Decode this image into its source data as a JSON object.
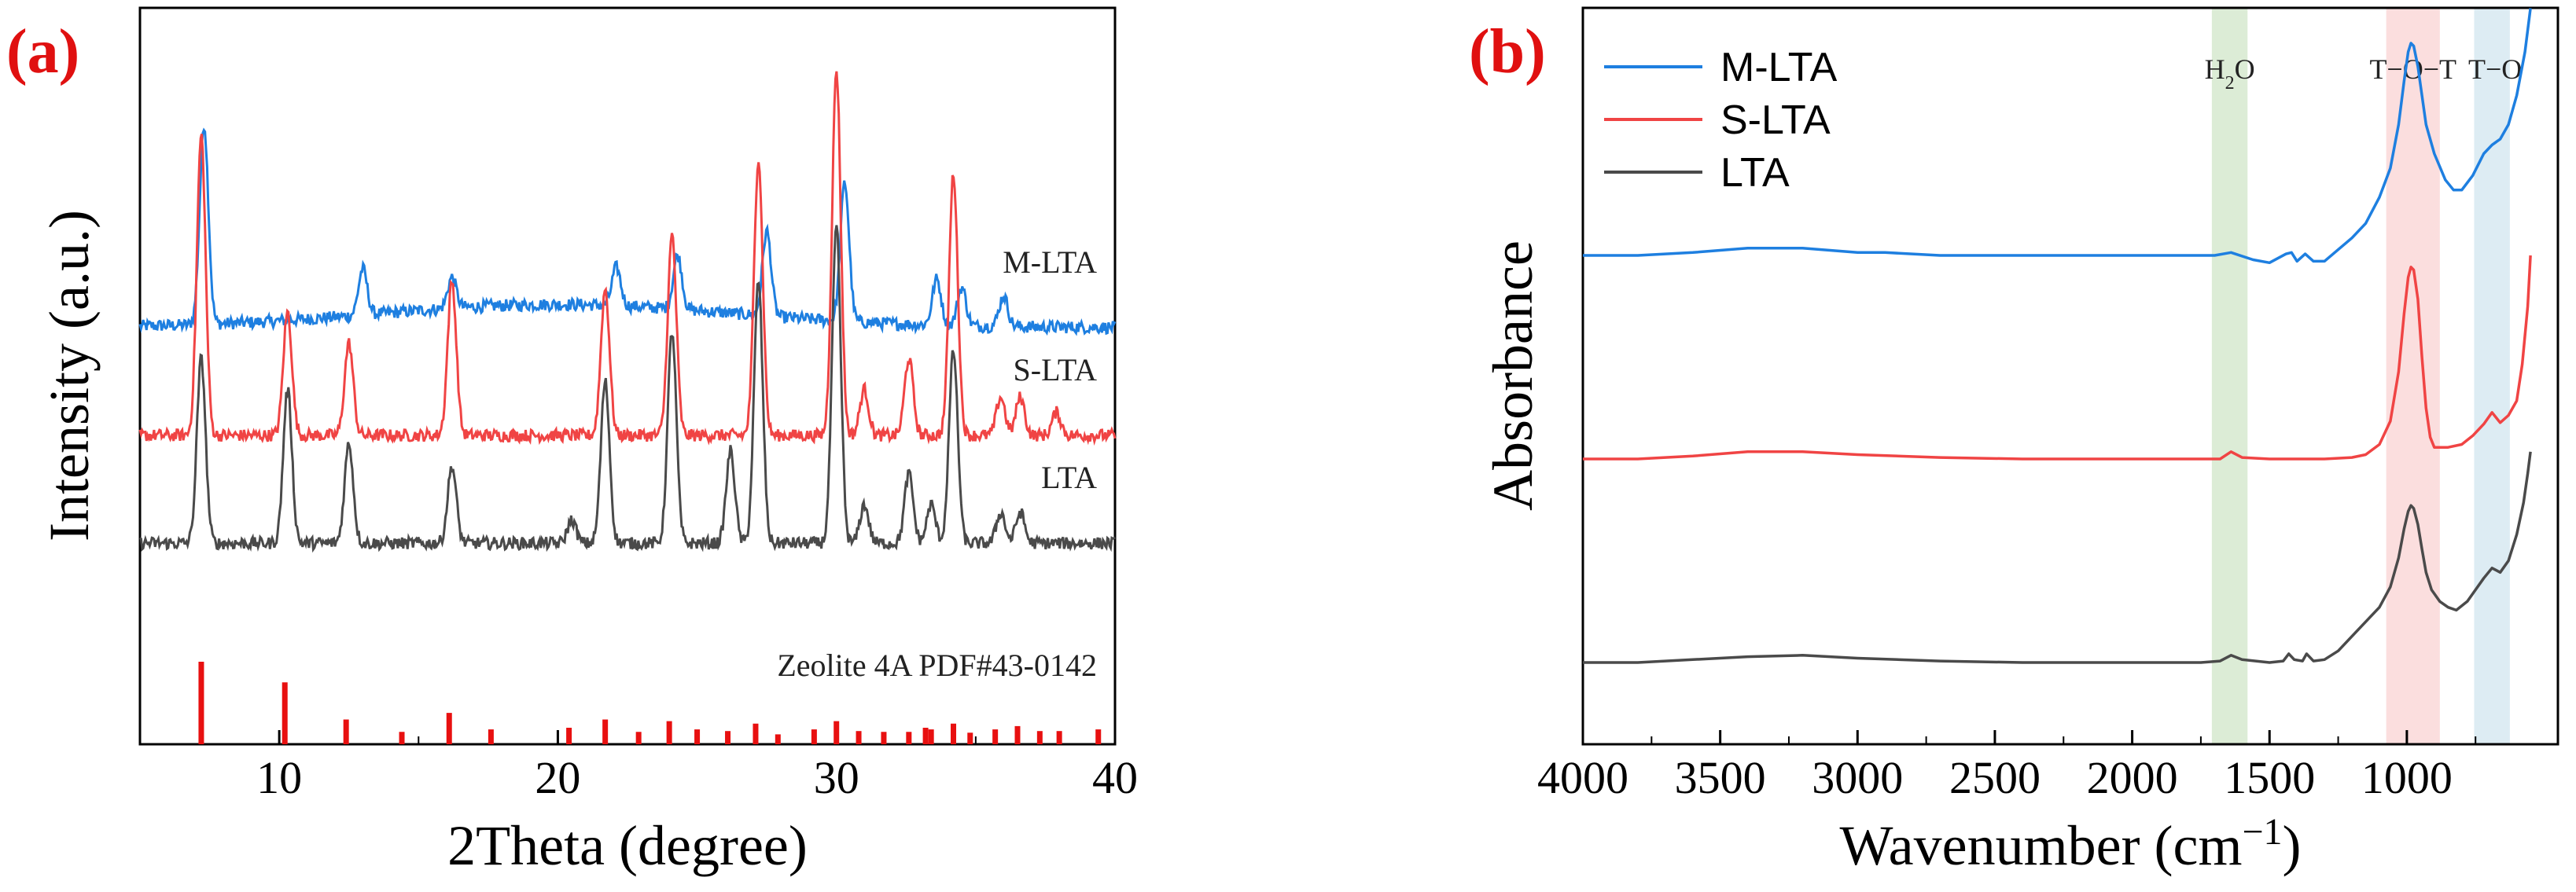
{
  "panels": {
    "a": {
      "label": "(a)"
    },
    "b": {
      "label": "(b)"
    }
  },
  "colors": {
    "panel_label": "#e01010",
    "m_lta": "#1e7fe0",
    "s_lta": "#f04444",
    "lta": "#4a4a4a",
    "ref": "#e81010",
    "h2o_band": "#dcecd6",
    "tot_band": "#fbdede",
    "to_band": "#ddecf3"
  },
  "chart_data": [
    {
      "type": "line",
      "title": "",
      "xlabel": "2Theta (degree)",
      "ylabel": "Intensity (a.u.)",
      "xlim": [
        5,
        40
      ],
      "xticks": [
        "10",
        "20",
        "30",
        "40"
      ],
      "xtick_values": [
        10,
        20,
        30,
        40
      ],
      "series": [
        {
          "name": "M-LTA",
          "baseline": 68,
          "peaks": [
            [
              7.3,
              52
            ],
            [
              13.0,
              12
            ],
            [
              16.2,
              8
            ],
            [
              22.1,
              10
            ],
            [
              24.3,
              14
            ],
            [
              27.5,
              22
            ],
            [
              30.3,
              36
            ],
            [
              33.6,
              12
            ],
            [
              34.5,
              10
            ],
            [
              36.0,
              8
            ]
          ]
        },
        {
          "name": "S-LTA",
          "baseline": 40,
          "peaks": [
            [
              7.2,
              78
            ],
            [
              10.3,
              32
            ],
            [
              12.5,
              24
            ],
            [
              16.2,
              40
            ],
            [
              21.7,
              38
            ],
            [
              24.1,
              52
            ],
            [
              27.2,
              72
            ],
            [
              30.0,
              95
            ],
            [
              31.0,
              12
            ],
            [
              32.6,
              20
            ],
            [
              34.2,
              68
            ],
            [
              35.9,
              10
            ],
            [
              36.6,
              10
            ],
            [
              37.9,
              6
            ]
          ]
        },
        {
          "name": "LTA",
          "baseline": 12,
          "peaks": [
            [
              7.2,
              48
            ],
            [
              10.3,
              40
            ],
            [
              12.5,
              26
            ],
            [
              16.2,
              20
            ],
            [
              20.5,
              6
            ],
            [
              21.7,
              42
            ],
            [
              24.1,
              55
            ],
            [
              26.2,
              24
            ],
            [
              27.2,
              68
            ],
            [
              30.0,
              82
            ],
            [
              31.0,
              10
            ],
            [
              32.6,
              18
            ],
            [
              33.4,
              10
            ],
            [
              34.2,
              50
            ],
            [
              35.9,
              8
            ],
            [
              36.6,
              8
            ]
          ]
        }
      ],
      "reference": {
        "name": "Zeolite 4A   PDF#43-0142",
        "sticks": [
          [
            7.2,
            100
          ],
          [
            10.2,
            75
          ],
          [
            12.4,
            30
          ],
          [
            14.4,
            15
          ],
          [
            16.1,
            38
          ],
          [
            17.6,
            18
          ],
          [
            20.4,
            20
          ],
          [
            21.7,
            30
          ],
          [
            22.9,
            15
          ],
          [
            24.0,
            28
          ],
          [
            25.0,
            18
          ],
          [
            26.1,
            16
          ],
          [
            27.1,
            25
          ],
          [
            27.9,
            12
          ],
          [
            29.2,
            18
          ],
          [
            30.0,
            28
          ],
          [
            30.8,
            16
          ],
          [
            31.7,
            15
          ],
          [
            32.6,
            15
          ],
          [
            33.2,
            20
          ],
          [
            33.4,
            18
          ],
          [
            34.2,
            25
          ],
          [
            34.8,
            14
          ],
          [
            35.7,
            18
          ],
          [
            36.5,
            22
          ],
          [
            37.3,
            16
          ],
          [
            38.0,
            16
          ],
          [
            39.4,
            18
          ]
        ]
      }
    },
    {
      "type": "line",
      "title": "",
      "xlabel": "Wavenumber (cm",
      "xlabel_sup": "−1",
      "xlabel_end": ")",
      "ylabel": "Absorbance",
      "xlim": [
        4000,
        450
      ],
      "xticks": [
        "4000",
        "3500",
        "3000",
        "2500",
        "2000",
        "1500",
        "1000"
      ],
      "xtick_values": [
        4000,
        3500,
        3000,
        2500,
        2000,
        1500,
        1000
      ],
      "bands": [
        {
          "label": "H",
          "sub": "2",
          "label_end": "O",
          "from": 1710,
          "to": 1580
        },
        {
          "label": "T−O−T",
          "from": 1075,
          "to": 880
        },
        {
          "label": "T−O",
          "from": 755,
          "to": 625
        }
      ],
      "series": [
        {
          "name": "M-LTA",
          "baseline": 300,
          "points": [
            [
              4000,
              300
            ],
            [
              3800,
              300
            ],
            [
              3600,
              302
            ],
            [
              3400,
              305
            ],
            [
              3200,
              305
            ],
            [
              3000,
              302
            ],
            [
              2900,
              302
            ],
            [
              2700,
              300
            ],
            [
              2400,
              300
            ],
            [
              2100,
              300
            ],
            [
              1900,
              300
            ],
            [
              1700,
              300
            ],
            [
              1640,
              302
            ],
            [
              1560,
              297
            ],
            [
              1500,
              295
            ],
            [
              1440,
              301
            ],
            [
              1420,
              302
            ],
            [
              1400,
              296
            ],
            [
              1370,
              301
            ],
            [
              1340,
              296
            ],
            [
              1300,
              296
            ],
            [
              1250,
              304
            ],
            [
              1200,
              312
            ],
            [
              1150,
              322
            ],
            [
              1100,
              340
            ],
            [
              1060,
              360
            ],
            [
              1030,
              390
            ],
            [
              1010,
              420
            ],
            [
              995,
              440
            ],
            [
              985,
              446
            ],
            [
              975,
              444
            ],
            [
              960,
              430
            ],
            [
              930,
              390
            ],
            [
              900,
              370
            ],
            [
              860,
              352
            ],
            [
              830,
              345
            ],
            [
              800,
              345
            ],
            [
              760,
              355
            ],
            [
              720,
              370
            ],
            [
              690,
              376
            ],
            [
              660,
              380
            ],
            [
              630,
              390
            ],
            [
              600,
              410
            ],
            [
              570,
              440
            ],
            [
              550,
              470
            ]
          ]
        },
        {
          "name": "S-LTA",
          "baseline": 160,
          "points": [
            [
              4000,
              160
            ],
            [
              3800,
              160
            ],
            [
              3600,
              162
            ],
            [
              3400,
              165
            ],
            [
              3200,
              165
            ],
            [
              3000,
              163
            ],
            [
              2700,
              161
            ],
            [
              2400,
              160
            ],
            [
              2100,
              160
            ],
            [
              1900,
              160
            ],
            [
              1750,
              160
            ],
            [
              1680,
              160
            ],
            [
              1640,
              165
            ],
            [
              1600,
              161
            ],
            [
              1500,
              160
            ],
            [
              1400,
              160
            ],
            [
              1300,
              160
            ],
            [
              1200,
              161
            ],
            [
              1150,
              163
            ],
            [
              1100,
              170
            ],
            [
              1060,
              186
            ],
            [
              1030,
              220
            ],
            [
              1010,
              260
            ],
            [
              995,
              285
            ],
            [
              985,
              292
            ],
            [
              975,
              290
            ],
            [
              960,
              270
            ],
            [
              945,
              230
            ],
            [
              930,
              195
            ],
            [
              915,
              175
            ],
            [
              900,
              168
            ],
            [
              850,
              168
            ],
            [
              800,
              170
            ],
            [
              760,
              176
            ],
            [
              720,
              184
            ],
            [
              690,
              192
            ],
            [
              660,
              185
            ],
            [
              630,
              190
            ],
            [
              600,
              200
            ],
            [
              580,
              225
            ],
            [
              560,
              265
            ],
            [
              550,
              300
            ]
          ]
        },
        {
          "name": "LTA",
          "baseline": 20,
          "points": [
            [
              4000,
              20
            ],
            [
              3800,
              20
            ],
            [
              3600,
              22
            ],
            [
              3400,
              24
            ],
            [
              3200,
              25
            ],
            [
              3000,
              23
            ],
            [
              2700,
              21
            ],
            [
              2400,
              20
            ],
            [
              2100,
              20
            ],
            [
              1900,
              20
            ],
            [
              1750,
              20
            ],
            [
              1680,
              21
            ],
            [
              1640,
              25
            ],
            [
              1600,
              22
            ],
            [
              1500,
              20
            ],
            [
              1450,
              21
            ],
            [
              1430,
              26
            ],
            [
              1410,
              22
            ],
            [
              1380,
              21
            ],
            [
              1365,
              26
            ],
            [
              1340,
              21
            ],
            [
              1300,
              22
            ],
            [
              1250,
              28
            ],
            [
              1200,
              38
            ],
            [
              1150,
              48
            ],
            [
              1100,
              58
            ],
            [
              1060,
              72
            ],
            [
              1030,
              92
            ],
            [
              1010,
              112
            ],
            [
              995,
              124
            ],
            [
              985,
              128
            ],
            [
              975,
              126
            ],
            [
              960,
              115
            ],
            [
              945,
              98
            ],
            [
              930,
              82
            ],
            [
              910,
              70
            ],
            [
              880,
              62
            ],
            [
              850,
              58
            ],
            [
              820,
              56
            ],
            [
              780,
              62
            ],
            [
              750,
              70
            ],
            [
              720,
              78
            ],
            [
              690,
              85
            ],
            [
              660,
              82
            ],
            [
              630,
              90
            ],
            [
              600,
              108
            ],
            [
              575,
              130
            ],
            [
              560,
              150
            ],
            [
              550,
              165
            ]
          ]
        }
      ]
    }
  ]
}
